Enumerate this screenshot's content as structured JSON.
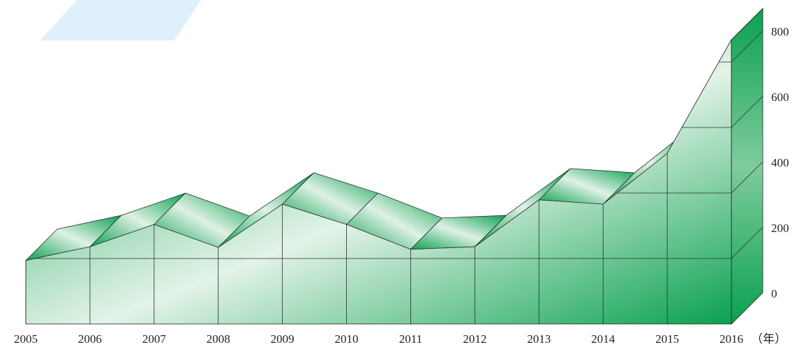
{
  "chart_data": {
    "type": "area3d",
    "categories": [
      "2005",
      "2006",
      "2007",
      "2008",
      "2009",
      "2010",
      "2011",
      "2012",
      "2013",
      "2014",
      "2015",
      "2016"
    ],
    "values": [
      194,
      236,
      304,
      234,
      366,
      304,
      228,
      236,
      379,
      366,
      521,
      868
    ],
    "x_unit": "（年）",
    "color": "#0aa14f",
    "ylim": [
      0,
      800
    ],
    "yticks": [
      0,
      200,
      400,
      600,
      800
    ],
    "grid": true
  }
}
